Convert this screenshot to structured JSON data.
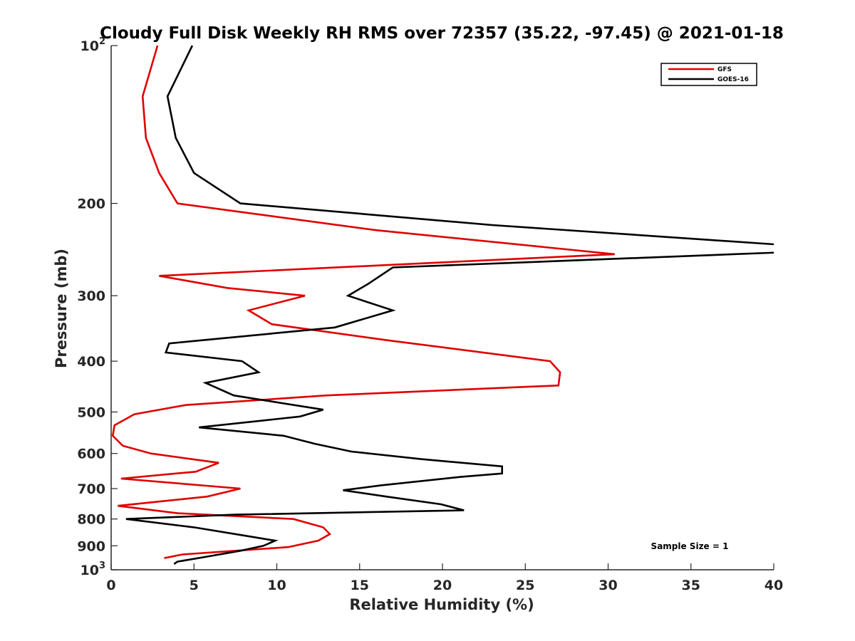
{
  "chart_data": {
    "type": "line",
    "title": "Cloudy Full Disk Weekly RH RMS over 72357 (35.22, -97.45) @ 2021-01-18",
    "xlabel": "Relative Humidity (%)",
    "ylabel": "Pressure (mb)",
    "xlim": [
      0,
      40
    ],
    "ylim": [
      100,
      1000
    ],
    "yscale": "log",
    "y_reversed": true,
    "grid": false,
    "legend_position": "top-right",
    "x_ticks": [
      0,
      5,
      10,
      15,
      20,
      25,
      30,
      35,
      40
    ],
    "x_tick_labels": [
      "0",
      "5",
      "10",
      "15",
      "20",
      "25",
      "30",
      "35",
      "40"
    ],
    "y_ticks": [
      100,
      200,
      300,
      400,
      500,
      600,
      700,
      800,
      900,
      1000
    ],
    "y_tick_labels": [
      "10²",
      "200",
      "300",
      "400",
      "500",
      "600",
      "700",
      "800",
      "900",
      "10³"
    ],
    "annotation": "Sample Size = 1",
    "series": [
      {
        "name": "GFS",
        "color": "#e00000",
        "points": [
          [
            2.8,
            100
          ],
          [
            1.9,
            125
          ],
          [
            2.1,
            150
          ],
          [
            2.9,
            175
          ],
          [
            4.0,
            200
          ],
          [
            16.0,
            225
          ],
          [
            30.4,
            250
          ],
          [
            2.9,
            275
          ],
          [
            7.0,
            290
          ],
          [
            11.7,
            300
          ],
          [
            8.3,
            320
          ],
          [
            9.7,
            340
          ],
          [
            16.7,
            365
          ],
          [
            26.5,
            400
          ],
          [
            27.1,
            420
          ],
          [
            27.0,
            445
          ],
          [
            13.0,
            465
          ],
          [
            4.5,
            485
          ],
          [
            1.4,
            505
          ],
          [
            0.2,
            530
          ],
          [
            0.1,
            555
          ],
          [
            0.7,
            580
          ],
          [
            2.4,
            600
          ],
          [
            6.5,
            625
          ],
          [
            5.1,
            650
          ],
          [
            0.6,
            670
          ],
          [
            7.8,
            700
          ],
          [
            5.8,
            725
          ],
          [
            0.4,
            755
          ],
          [
            4.0,
            780
          ],
          [
            11.0,
            800
          ],
          [
            12.8,
            830
          ],
          [
            13.2,
            855
          ],
          [
            12.5,
            880
          ],
          [
            10.7,
            905
          ],
          [
            4.3,
            935
          ],
          [
            3.2,
            950
          ]
        ]
      },
      {
        "name": "GOES-16",
        "color": "#000000",
        "points": [
          [
            4.9,
            100
          ],
          [
            3.4,
            125
          ],
          [
            3.9,
            150
          ],
          [
            5.0,
            175
          ],
          [
            7.8,
            200
          ],
          [
            23.0,
            220
          ],
          [
            40.5,
            240
          ],
          [
            40.5,
            248
          ],
          [
            17.0,
            265
          ],
          [
            15.5,
            285
          ],
          [
            14.3,
            300
          ],
          [
            17.0,
            320
          ],
          [
            13.5,
            345
          ],
          [
            3.5,
            370
          ],
          [
            3.3,
            385
          ],
          [
            7.9,
            400
          ],
          [
            8.9,
            420
          ],
          [
            5.7,
            440
          ],
          [
            7.4,
            465
          ],
          [
            12.8,
            495
          ],
          [
            11.4,
            510
          ],
          [
            5.3,
            535
          ],
          [
            10.4,
            555
          ],
          [
            12.3,
            575
          ],
          [
            14.5,
            595
          ],
          [
            18.7,
            615
          ],
          [
            23.6,
            635
          ],
          [
            23.6,
            655
          ],
          [
            21.1,
            665
          ],
          [
            16.3,
            690
          ],
          [
            14.0,
            705
          ],
          [
            16.6,
            725
          ],
          [
            19.9,
            750
          ],
          [
            21.3,
            770
          ],
          [
            7.5,
            785
          ],
          [
            0.9,
            800
          ],
          [
            5.0,
            830
          ],
          [
            8.0,
            860
          ],
          [
            9.9,
            880
          ],
          [
            9.2,
            900
          ],
          [
            7.8,
            920
          ],
          [
            5.7,
            945
          ],
          [
            4.0,
            965
          ],
          [
            3.8,
            975
          ]
        ]
      }
    ]
  }
}
